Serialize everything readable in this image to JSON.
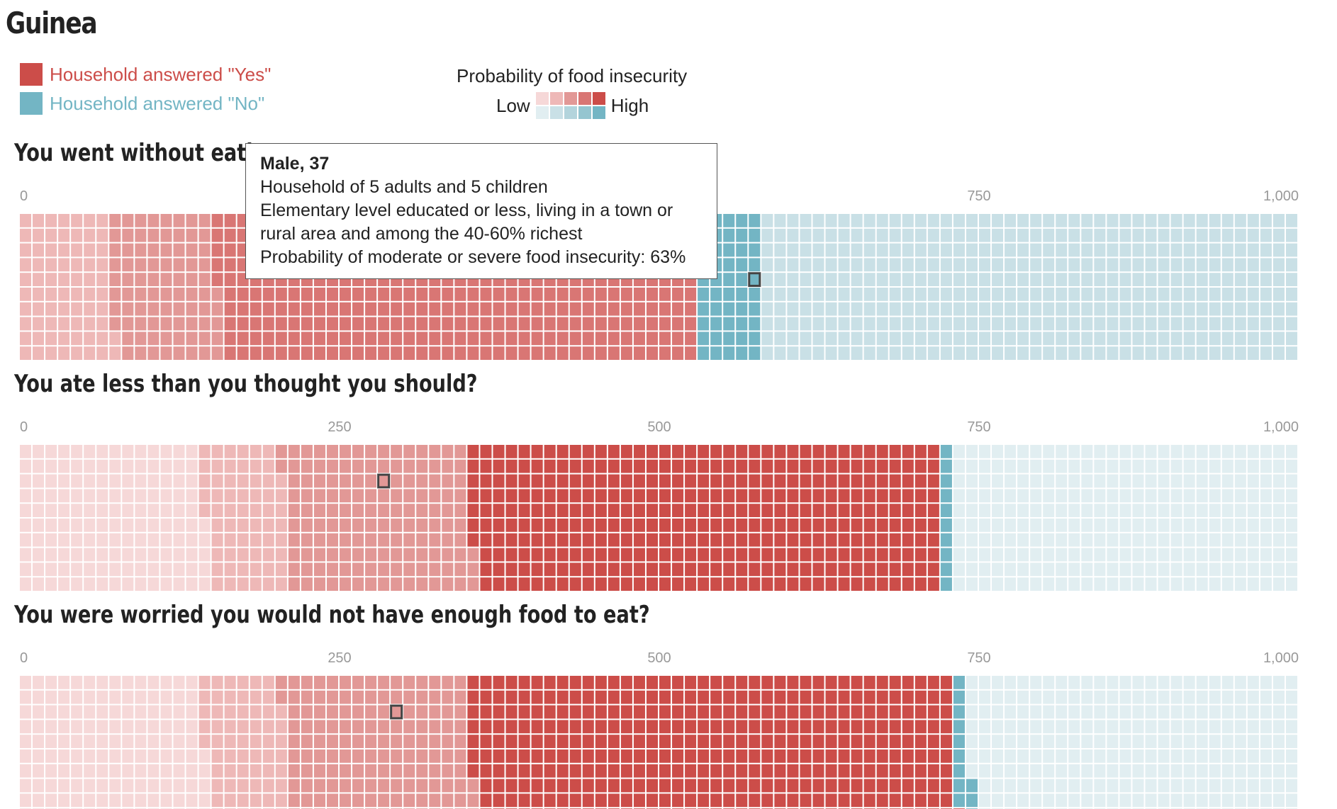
{
  "title": "Guinea",
  "legend": {
    "yes_label": "Household answered \"Yes\"",
    "no_label": "Household answered \"No\"",
    "yes_color": "#cc4d49",
    "no_color": "#73b5c4"
  },
  "scale": {
    "title": "Probability of food insecurity",
    "low_label": "Low",
    "high_label": "High",
    "yes_shades": [
      "#f6d8d8",
      "#eeb8b7",
      "#e29896",
      "#d97674",
      "#cc4d49"
    ],
    "no_shades": [
      "#e1eef1",
      "#c9e0e6",
      "#b3d4dc",
      "#95c5d0",
      "#73b5c4"
    ]
  },
  "tooltip": {
    "heading": "Male, 37",
    "line1": "Household of 5 adults and 5 children",
    "line2": "Elementary level educated or less, living in a town or",
    "line3": "rural area and among the 40-60% richest",
    "line4": "Probability of moderate or severe food insecurity: 63%"
  },
  "chart_data": [
    {
      "type": "waffle",
      "title": "You went without eating for a whole day?",
      "visible_title": "You went without eati",
      "axis_ticks": [
        "0",
        "",
        "",
        "750",
        "1,000"
      ],
      "total": 1000,
      "segments": [
        {
          "answer": "Yes",
          "shade": 1,
          "count": 72
        },
        {
          "answer": "Yes",
          "shade": 2,
          "count": 83
        },
        {
          "answer": "Yes",
          "shade": 3,
          "count": 375
        },
        {
          "answer": "No",
          "shade": 4,
          "count": 50
        },
        {
          "answer": "No",
          "shade": 1,
          "count": 420
        }
      ],
      "highlight_index": 575
    },
    {
      "type": "waffle",
      "title": "You ate less than you thought you should?",
      "visible_title": "You ate less than you thought you should?",
      "axis_ticks": [
        "0",
        "250",
        "500",
        "750",
        "1,000"
      ],
      "total": 1000,
      "segments": [
        {
          "answer": "Yes",
          "shade": 0,
          "count": 145
        },
        {
          "answer": "Yes",
          "shade": 1,
          "count": 63
        },
        {
          "answer": "Yes",
          "shade": 2,
          "count": 145
        },
        {
          "answer": "Yes",
          "shade": 4,
          "count": 367
        },
        {
          "answer": "No",
          "shade": 4,
          "count": 10
        },
        {
          "answer": "No",
          "shade": 0,
          "count": 270
        }
      ],
      "highlight_index": 287
    },
    {
      "type": "waffle",
      "title": "You were worried you would not have enough food to eat?",
      "visible_title": "You were worried you would not have enough food to eat?",
      "axis_ticks": [
        "0",
        "250",
        "500",
        "750",
        "1,000"
      ],
      "total": 1000,
      "segments": [
        {
          "answer": "Yes",
          "shade": 0,
          "count": 145
        },
        {
          "answer": "Yes",
          "shade": 1,
          "count": 63
        },
        {
          "answer": "Yes",
          "shade": 2,
          "count": 145
        },
        {
          "answer": "Yes",
          "shade": 4,
          "count": 378
        },
        {
          "answer": "No",
          "shade": 4,
          "count": 12
        },
        {
          "answer": "No",
          "shade": 0,
          "count": 257
        }
      ],
      "highlight_index": 297
    }
  ]
}
